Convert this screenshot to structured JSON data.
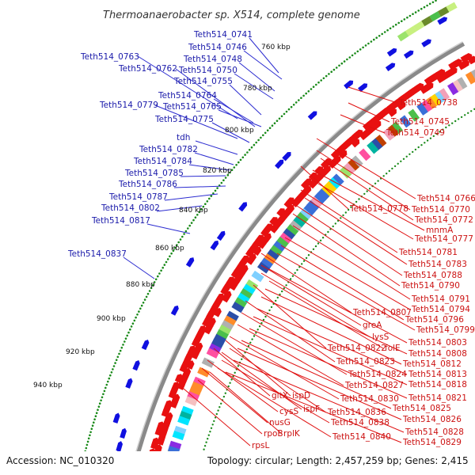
{
  "header": {
    "title": "Thermoanaerobacter sp. X514, complete genome"
  },
  "footer": {
    "accession": "Accession: NC_010320",
    "topology": "Topology: circular; Length: 2,457,259 bp; Genes: 2,415"
  },
  "colors": {
    "forward_arrows": "#e81010",
    "reverse_arrows": "#1010e0",
    "backbone": "#8a8a8a",
    "dotted_track": "#1a8a1a",
    "blue_label": "#1a1aaa",
    "red_label": "#cc1111"
  },
  "scale_ticks": [
    "760 kbp",
    "780 kbp",
    "800 kbp",
    "820 kbp",
    "840 kbp",
    "860 kbp",
    "880 kbp",
    "900 kbp",
    "920 kbp",
    "940 kbp"
  ],
  "blue_labels": [
    "Teth514_0741",
    "Teth514_0746",
    "Teth514_0763",
    "Teth514_0748",
    "Teth514_0762",
    "Teth514_0750",
    "Teth514_0755",
    "Teth514_0764",
    "Teth514_0779",
    "Teth514_0765",
    "Teth514_0775",
    "tdh",
    "Teth514_0782",
    "Teth514_0784",
    "Teth514_0785",
    "Teth514_0786",
    "Teth514_0787",
    "Teth514_0802",
    "Teth514_0817",
    "Teth514_0837"
  ],
  "red_labels": [
    "Teth514_0738",
    "Teth514_0745",
    "Teth514_0749",
    "Teth514_0766",
    "Teth514_0778",
    "Teth514_0770",
    "Teth514_0772",
    "mnmA",
    "Teth514_0777",
    "Teth514_0781",
    "Teth514_0783",
    "Teth514_0788",
    "Teth514_0790",
    "Teth514_0791",
    "Teth514_0807",
    "Teth514_0794",
    "Teth514_0796",
    "greA",
    "Teth514_0799",
    "lysS",
    "Teth514_0803",
    "Teth514_0822",
    "folE",
    "Teth514_0808",
    "Teth514_0823",
    "Teth514_0812",
    "Teth514_0824",
    "Teth514_0813",
    "Teth514_0827",
    "Teth514_0818",
    "Teth514_0830",
    "Teth514_0821",
    "gltX",
    "ispD",
    "Teth514_0825",
    "ispF",
    "cysS",
    "Teth514_0836",
    "Teth514_0826",
    "Teth514_0838",
    "nusG",
    "Teth514_0828",
    "rpoB",
    "rplK",
    "Teth514_0840",
    "Teth514_0829",
    "rpsL"
  ]
}
